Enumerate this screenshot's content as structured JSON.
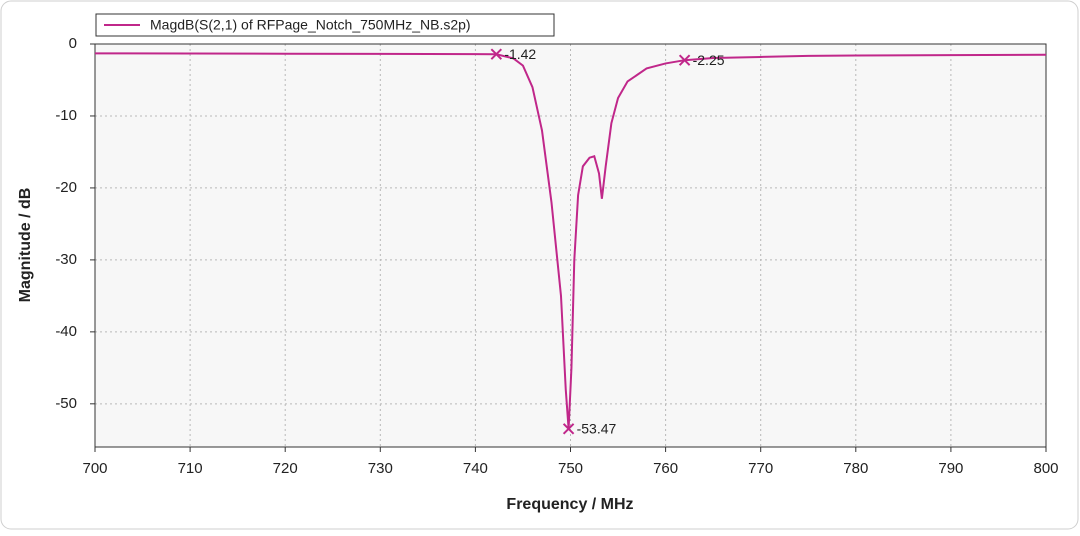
{
  "chart_data": {
    "type": "line",
    "xlabel": "Frequency / MHz",
    "ylabel": "Magnitude / dB",
    "xlim": [
      700,
      800
    ],
    "ylim": [
      -56,
      0
    ],
    "xticks": [
      700,
      710,
      720,
      730,
      740,
      750,
      760,
      770,
      780,
      790,
      800
    ],
    "yticks": [
      0,
      -10,
      -20,
      -30,
      -40,
      -50
    ],
    "grid": true,
    "legend": "top-left",
    "x": [
      700,
      710,
      720,
      730,
      740,
      742.2,
      744,
      745,
      746,
      747,
      748,
      749,
      749.5,
      749.8,
      750.1,
      750.4,
      750.8,
      751.3,
      752,
      752.5,
      753,
      753.3,
      753.7,
      754.3,
      755,
      756,
      758,
      760,
      762,
      765,
      770,
      775,
      780,
      790,
      800
    ],
    "series": [
      {
        "name": "MagdB(S(2,1) of RFPage_Notch_750MHz_NB.s2p)",
        "color": "#c0278a",
        "values": [
          -1.3,
          -1.32,
          -1.35,
          -1.37,
          -1.4,
          -1.42,
          -2.0,
          -3.0,
          -6.0,
          -12.0,
          -22.0,
          -35.0,
          -48.0,
          -53.47,
          -45.0,
          -30.0,
          -21.0,
          -17.0,
          -15.8,
          -15.6,
          -18.0,
          -21.5,
          -17.0,
          -11.0,
          -7.5,
          -5.2,
          -3.4,
          -2.7,
          -2.25,
          -1.95,
          -1.8,
          -1.65,
          -1.6,
          -1.55,
          -1.5
        ]
      }
    ],
    "markers": [
      {
        "x": 742.2,
        "y": -1.42
      },
      {
        "x": 749.8,
        "y": -53.47
      },
      {
        "x": 762.0,
        "y": -2.25
      }
    ]
  }
}
